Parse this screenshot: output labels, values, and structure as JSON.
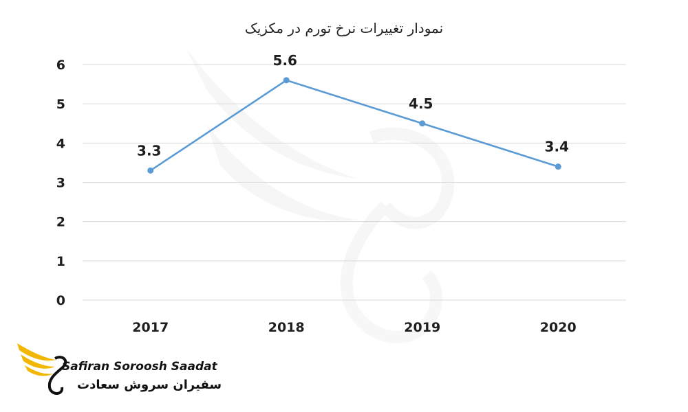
{
  "chart_data": {
    "type": "line",
    "title": "نمودار تغییرات نرخ تورم در مکزیک",
    "categories": [
      "2017",
      "2018",
      "2019",
      "2020"
    ],
    "series": [
      {
        "values": [
          3.3,
          5.6,
          4.5,
          3.4
        ],
        "color": "#5b9bd5"
      }
    ],
    "data_labels": [
      "3.3",
      "5.6",
      "4.5",
      "3.4"
    ],
    "yticks": [
      "0",
      "1",
      "2",
      "3",
      "4",
      "5",
      "6"
    ],
    "ylim": [
      0,
      6
    ],
    "grid": true,
    "legend": "none"
  },
  "logo": {
    "name_en": "Safiran Soroosh Saadat",
    "name_fa": "سفیران سروش سعادت",
    "accent_color": "#f2b705"
  }
}
